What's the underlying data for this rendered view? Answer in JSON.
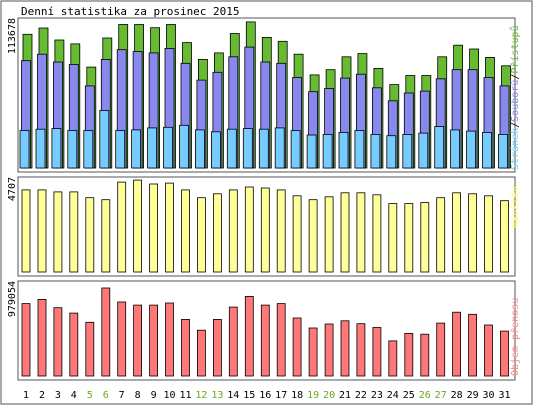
{
  "title": "Denní statistika za prosinec 2015",
  "colors": {
    "background": "#ffffff",
    "frame": "#555555",
    "outline": "#000000",
    "hits": "#66bb33",
    "files": "#8888ee",
    "pages": "#77ccff",
    "visits": "#ffff99",
    "kbytes": "#ff7777",
    "weekend_label": "#66aa22",
    "day_label": "#000000"
  },
  "chart_data": [
    {
      "type": "bar",
      "panel": "hits",
      "categories": [
        "1",
        "2",
        "3",
        "4",
        "5",
        "6",
        "7",
        "8",
        "9",
        "10",
        "11",
        "12",
        "13",
        "14",
        "15",
        "16",
        "17",
        "18",
        "19",
        "20",
        "21",
        "22",
        "23",
        "24",
        "25",
        "26",
        "27",
        "28",
        "29",
        "30",
        "31"
      ],
      "weekend_days": [
        "5",
        "6",
        "12",
        "13",
        "19",
        "20",
        "26",
        "27"
      ],
      "ymax_label": "113678",
      "ylim": [
        0,
        113678
      ],
      "legend": {
        "pages": "Stránek",
        "files": "Souborů",
        "hits": "Přístupů",
        "separator": "/"
      },
      "series": [
        {
          "name": "Přístupů",
          "key": "hits",
          "values": [
            103400,
            108300,
            99000,
            96000,
            78000,
            100500,
            111000,
            111000,
            108500,
            111000,
            97000,
            84000,
            89000,
            104000,
            113000,
            101000,
            98000,
            88000,
            72000,
            76000,
            86000,
            88500,
            77000,
            64500,
            71500,
            71500,
            86000,
            95000,
            92000,
            85500,
            79000
          ]
        },
        {
          "name": "Souborů",
          "key": "files",
          "values": [
            83000,
            88000,
            82000,
            80000,
            63500,
            84000,
            91500,
            90000,
            89000,
            92500,
            81000,
            68000,
            74000,
            86000,
            93500,
            82000,
            81000,
            70000,
            59000,
            61500,
            69500,
            72500,
            62000,
            52000,
            58000,
            59500,
            69000,
            76000,
            76000,
            70000,
            63500
          ]
        },
        {
          "name": "Stránek",
          "key": "pages",
          "values": [
            29000,
            30000,
            30500,
            29000,
            29000,
            44500,
            29000,
            29500,
            31000,
            31500,
            33000,
            29500,
            28000,
            30000,
            30500,
            30000,
            31000,
            29000,
            25500,
            26000,
            27500,
            29000,
            26000,
            25000,
            26000,
            27000,
            32000,
            29500,
            28500,
            27500,
            26000
          ]
        }
      ]
    },
    {
      "type": "bar",
      "panel": "visits",
      "categories": [
        "1",
        "2",
        "3",
        "4",
        "5",
        "6",
        "7",
        "8",
        "9",
        "10",
        "11",
        "12",
        "13",
        "14",
        "15",
        "16",
        "17",
        "18",
        "19",
        "20",
        "21",
        "22",
        "23",
        "24",
        "25",
        "26",
        "27",
        "28",
        "29",
        "30",
        "31"
      ],
      "ymax_label": "4707",
      "ylim": [
        0,
        4707
      ],
      "label": "Návštěv",
      "series": [
        {
          "name": "Návštěv",
          "key": "visits",
          "values": [
            4200,
            4200,
            4100,
            4100,
            3800,
            3700,
            4600,
            4700,
            4500,
            4550,
            4200,
            3800,
            4000,
            4200,
            4350,
            4300,
            4200,
            3900,
            3700,
            3850,
            4050,
            4050,
            3950,
            3500,
            3500,
            3550,
            3800,
            4050,
            4000,
            3900,
            3650
          ]
        }
      ]
    },
    {
      "type": "bar",
      "panel": "kbytes",
      "categories": [
        "1",
        "2",
        "3",
        "4",
        "5",
        "6",
        "7",
        "8",
        "9",
        "10",
        "11",
        "12",
        "13",
        "14",
        "15",
        "16",
        "17",
        "18",
        "19",
        "20",
        "21",
        "22",
        "23",
        "24",
        "25",
        "26",
        "27",
        "28",
        "29",
        "30",
        "31"
      ],
      "ymax_label": "979054",
      "ylim": [
        0,
        979054
      ],
      "label": "Objem přenosu",
      "series": [
        {
          "name": "Objem přenosu",
          "key": "kbytes",
          "values": [
            806000,
            852000,
            760000,
            700000,
            597000,
            979000,
            823000,
            789000,
            789000,
            812000,
            630000,
            509000,
            630000,
            766000,
            886000,
            789000,
            805000,
            645000,
            534000,
            578000,
            614000,
            582000,
            540000,
            391000,
            474000,
            465000,
            589000,
            710000,
            687000,
            567000,
            499000
          ]
        }
      ]
    }
  ]
}
